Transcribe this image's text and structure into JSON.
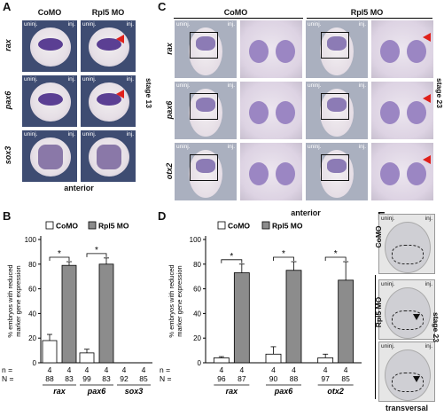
{
  "panels": {
    "A": {
      "label": "A",
      "col_headers": [
        "CoMO",
        "Rpl5 MO"
      ],
      "row_labels": [
        "rax",
        "pax6",
        "sox3"
      ],
      "corner_left": "uninj.",
      "corner_right": "inj.",
      "stage": "stage 13",
      "bottom": "anterior"
    },
    "C": {
      "label": "C",
      "col_headers": [
        "CoMO",
        "Rpl5 MO"
      ],
      "row_labels": [
        "rax",
        "pax6",
        "otx2"
      ],
      "corner_left": "uninj.",
      "corner_right": "inj.",
      "stage": "stage 23",
      "bottom": "anterior"
    },
    "E": {
      "label": "E",
      "corner_left": "uninj.",
      "corner_right": "inj.",
      "group_labels": [
        "CoMO",
        "Rpl5 MO"
      ],
      "stage": "stage 23",
      "bottom": "transversal"
    },
    "B": {
      "label": "B"
    },
    "D": {
      "label": "D"
    }
  },
  "chart_data": [
    {
      "type": "bar",
      "panel": "B",
      "ylabel": "% embryos with reduced marker gene expression",
      "ylim": [
        0,
        100
      ],
      "yticks": [
        0,
        20,
        40,
        60,
        80,
        100
      ],
      "legend": [
        "CoMO",
        "Rpl5 MO"
      ],
      "colors": {
        "CoMO": "#ffffff",
        "Rpl5 MO": "#8c8c8c"
      },
      "categories": [
        "rax",
        "pax6",
        "sox3"
      ],
      "series": [
        {
          "name": "CoMO",
          "values": [
            18,
            8,
            0
          ],
          "errors": [
            5,
            3,
            0
          ]
        },
        {
          "name": "Rpl5 MO",
          "values": [
            79,
            80,
            0
          ],
          "errors": [
            3,
            5,
            0
          ]
        }
      ],
      "significance": [
        "*",
        "*",
        ""
      ],
      "n_label": "n =",
      "N_label": "N =",
      "n": [
        [
          "4",
          "4"
        ],
        [
          "4",
          "4"
        ],
        [
          "4",
          "4"
        ]
      ],
      "N": [
        [
          "88",
          "83"
        ],
        [
          "99",
          "83"
        ],
        [
          "92",
          "85"
        ]
      ]
    },
    {
      "type": "bar",
      "panel": "D",
      "ylabel": "% embryos with reduced marker gene expression",
      "ylim": [
        0,
        100
      ],
      "yticks": [
        0,
        20,
        40,
        60,
        80,
        100
      ],
      "legend": [
        "CoMO",
        "Rpl5 MO"
      ],
      "colors": {
        "CoMO": "#ffffff",
        "Rpl5 MO": "#8c8c8c"
      },
      "categories": [
        "rax",
        "pax6",
        "otx2"
      ],
      "series": [
        {
          "name": "CoMO",
          "values": [
            4,
            7,
            4
          ],
          "errors": [
            1,
            6,
            3
          ]
        },
        {
          "name": "Rpl5 MO",
          "values": [
            73,
            75,
            67
          ],
          "errors": [
            7,
            7,
            15
          ]
        }
      ],
      "significance": [
        "*",
        "*",
        "*"
      ],
      "n_label": "n =",
      "N_label": "N =",
      "n": [
        [
          "4",
          "4"
        ],
        [
          "4",
          "4"
        ],
        [
          "4",
          "4"
        ]
      ],
      "N": [
        [
          "96",
          "87"
        ],
        [
          "90",
          "88"
        ],
        [
          "97",
          "85"
        ]
      ]
    }
  ]
}
